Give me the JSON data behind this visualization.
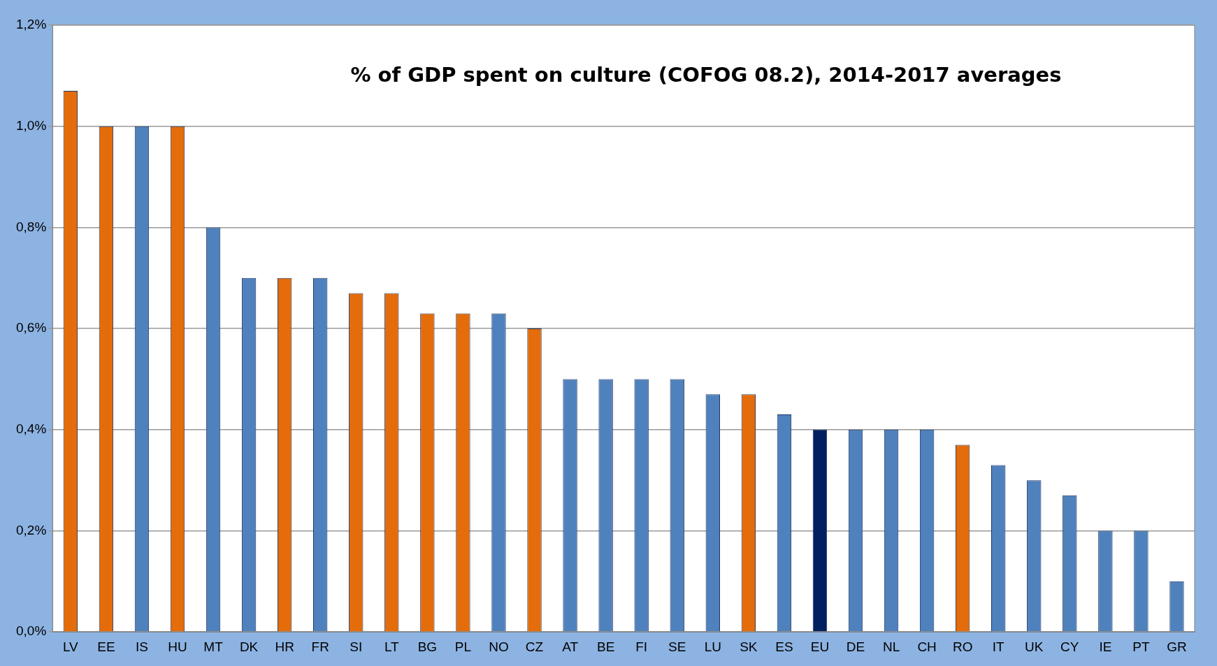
{
  "chart_data": {
    "type": "bar",
    "title": "% of GDP spent on culture (COFOG 08.2), 2014-2017 averages",
    "categories": [
      "LV",
      "EE",
      "IS",
      "HU",
      "MT",
      "DK",
      "HR",
      "FR",
      "SI",
      "LT",
      "BG",
      "PL",
      "NO",
      "CZ",
      "AT",
      "BE",
      "FI",
      "SE",
      "LU",
      "SK",
      "ES",
      "EU",
      "DE",
      "NL",
      "CH",
      "RO",
      "IT",
      "UK",
      "CY",
      "IE",
      "PT",
      "GR"
    ],
    "values": [
      1.07,
      1.0,
      1.0,
      1.0,
      0.8,
      0.7,
      0.7,
      0.7,
      0.67,
      0.67,
      0.63,
      0.63,
      0.63,
      0.6,
      0.5,
      0.5,
      0.5,
      0.5,
      0.47,
      0.47,
      0.43,
      0.4,
      0.4,
      0.4,
      0.4,
      0.37,
      0.33,
      0.3,
      0.27,
      0.2,
      0.2,
      0.1
    ],
    "colors": [
      "#e46c0a",
      "#e46c0a",
      "#4f81bd",
      "#e46c0a",
      "#4f81bd",
      "#4f81bd",
      "#e46c0a",
      "#4f81bd",
      "#e46c0a",
      "#e46c0a",
      "#e46c0a",
      "#e46c0a",
      "#4f81bd",
      "#e46c0a",
      "#4f81bd",
      "#4f81bd",
      "#4f81bd",
      "#4f81bd",
      "#4f81bd",
      "#e46c0a",
      "#4f81bd",
      "#002060",
      "#4f81bd",
      "#4f81bd",
      "#4f81bd",
      "#e46c0a",
      "#4f81bd",
      "#4f81bd",
      "#4f81bd",
      "#4f81bd",
      "#4f81bd",
      "#4f81bd"
    ],
    "ylim": [
      0,
      1.2
    ],
    "yticks": [
      {
        "value": 0,
        "label": "0,0%"
      },
      {
        "value": 0.2,
        "label": "0,2%"
      },
      {
        "value": 0.4,
        "label": "0,4%"
      },
      {
        "value": 0.6,
        "label": "0,6%"
      },
      {
        "value": 0.8,
        "label": "0,8%"
      },
      {
        "value": 1.0,
        "label": "1,0%"
      },
      {
        "value": 1.2,
        "label": "1,2%"
      }
    ],
    "grid": "y",
    "legend": false
  }
}
